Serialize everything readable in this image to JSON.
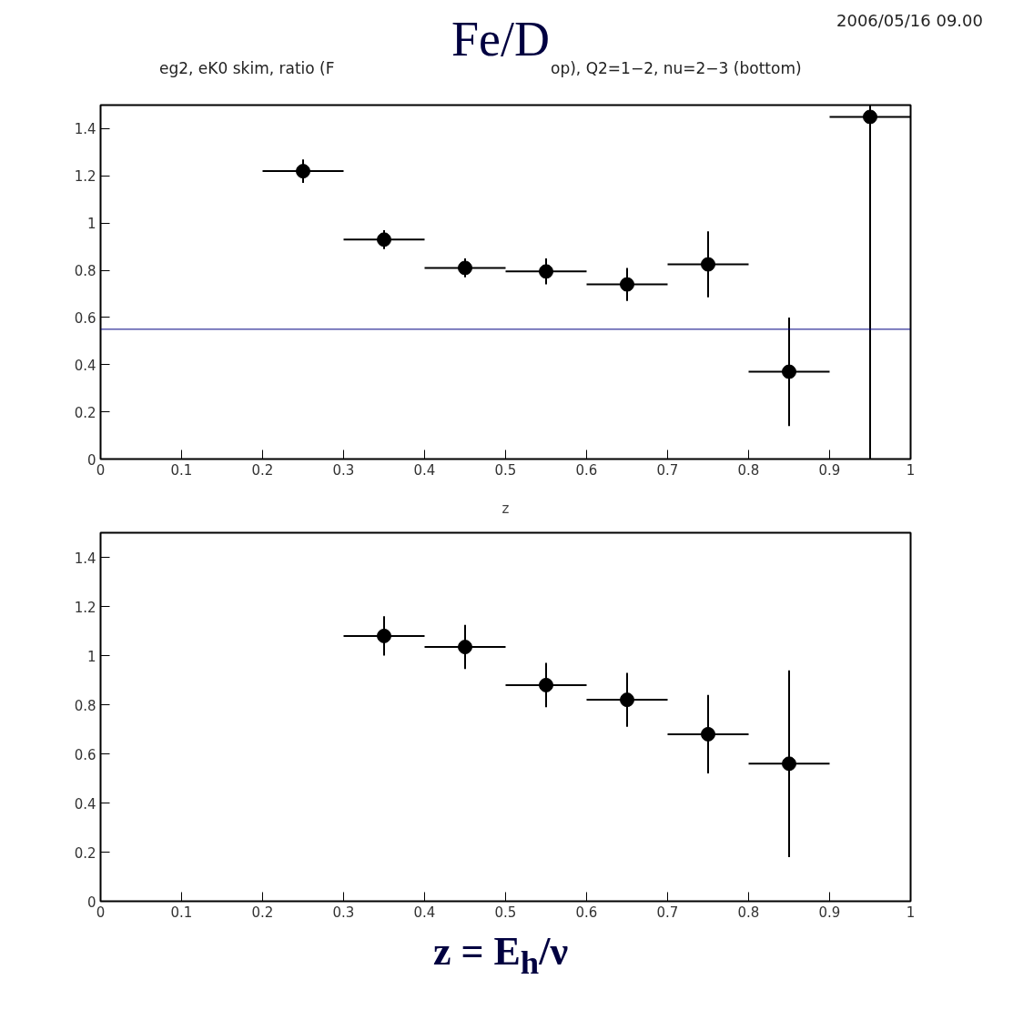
{
  "chart_data": [
    {
      "type": "scatter",
      "title": "Fe/D",
      "annotations": [
        "2006/05/16   09.00",
        "eg2, eK0 skim, ratio (F",
        "op), Q2=1−2, nu=2−3 (bottom)"
      ],
      "xlabel": "z",
      "x": [
        0.25,
        0.35,
        0.45,
        0.55,
        0.65,
        0.75,
        0.85,
        0.95
      ],
      "values": [
        1.22,
        0.93,
        0.81,
        0.795,
        0.74,
        0.825,
        0.37,
        1.45
      ],
      "errors": [
        0.05,
        0.04,
        0.04,
        0.055,
        0.07,
        0.14,
        0.23,
        [
          0,
          1.5
        ]
      ],
      "xerrors": [
        0.05,
        0.05,
        0.05,
        0.05,
        0.05,
        0.05,
        0.05,
        0.05
      ],
      "color": "#000000",
      "marker": "circle",
      "grid": false,
      "ref_lines": [
        {
          "axis": "y",
          "value": 0.55,
          "color": "#000080"
        }
      ],
      "xlim": [
        0,
        1
      ],
      "ylim": [
        0,
        1.5
      ],
      "xticks": [
        0,
        0.1,
        0.2,
        0.3,
        0.4,
        0.5,
        0.6,
        0.7,
        0.8,
        0.9,
        1
      ],
      "yticks": [
        0,
        0.2,
        0.4,
        0.6,
        0.8,
        1,
        1.2,
        1.4
      ]
    },
    {
      "type": "scatter",
      "annotations": [
        "z = E$_{h}$/ν"
      ],
      "x": [
        0.35,
        0.45,
        0.55,
        0.65,
        0.75,
        0.85
      ],
      "values": [
        1.08,
        1.035,
        0.88,
        0.82,
        0.68,
        0.56
      ],
      "errors": [
        0.08,
        0.09,
        0.09,
        0.11,
        0.16,
        0.38
      ],
      "xerrors": [
        0.05,
        0.05,
        0.05,
        0.05,
        0.05,
        0.05
      ],
      "color": "#000000",
      "marker": "circle",
      "grid": false,
      "xlim": [
        0,
        1
      ],
      "ylim": [
        0,
        1.5
      ],
      "xticks": [
        0,
        0.1,
        0.2,
        0.3,
        0.4,
        0.5,
        0.6,
        0.7,
        0.8,
        0.9,
        1
      ],
      "yticks": [
        0,
        0.2,
        0.4,
        0.6,
        0.8,
        1,
        1.2,
        1.4
      ]
    }
  ]
}
